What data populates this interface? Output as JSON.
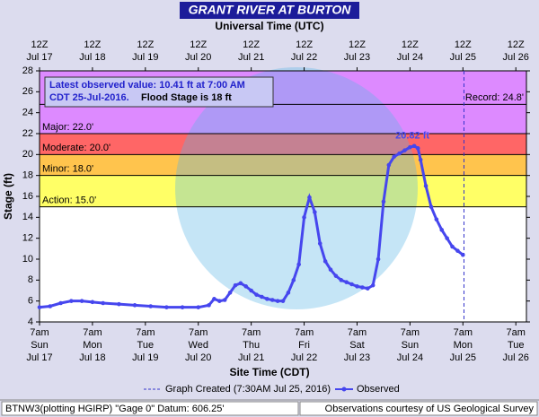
{
  "chart_data": {
    "type": "line",
    "title": "GRANT RIVER AT BURTON",
    "top_axis_label": "Universal Time (UTC)",
    "x_label": "Site Time (CDT)",
    "y_label": "Stage (ft)",
    "info_lines": [
      "Latest observed value: 10.41 ft at 7:00 AM",
      "CDT 25-Jul-2016."
    ],
    "info_flood": "Flood Stage is 18 ft",
    "peak_label": "20.82 ft",
    "xlim": [
      0,
      9.2
    ],
    "ylim": [
      4,
      28
    ],
    "yticks": [
      4,
      6,
      8,
      10,
      12,
      14,
      16,
      18,
      20,
      22,
      24,
      26,
      28
    ],
    "xticks": [
      {
        "value": 0,
        "label": [
          "7am",
          "Sun",
          "Jul 17"
        ]
      },
      {
        "value": 1,
        "label": [
          "7am",
          "Mon",
          "Jul 18"
        ]
      },
      {
        "value": 2,
        "label": [
          "7am",
          "Tue",
          "Jul 19"
        ]
      },
      {
        "value": 3,
        "label": [
          "7am",
          "Wed",
          "Jul 20"
        ]
      },
      {
        "value": 4,
        "label": [
          "7am",
          "Thu",
          "Jul 21"
        ]
      },
      {
        "value": 5,
        "label": [
          "7am",
          "Fri",
          "Jul 22"
        ]
      },
      {
        "value": 6,
        "label": [
          "7am",
          "Sat",
          "Jul 23"
        ]
      },
      {
        "value": 7,
        "label": [
          "7am",
          "Sun",
          "Jul 24"
        ]
      },
      {
        "value": 8,
        "label": [
          "7am",
          "Mon",
          "Jul 25"
        ]
      },
      {
        "value": 9,
        "label": [
          "7am",
          "Tue",
          "Jul 26"
        ]
      }
    ],
    "top_xticks": [
      {
        "value": 0,
        "label": [
          "12Z",
          "Jul 17"
        ]
      },
      {
        "value": 1,
        "label": [
          "12Z",
          "Jul 18"
        ]
      },
      {
        "value": 2,
        "label": [
          "12Z",
          "Jul 19"
        ]
      },
      {
        "value": 3,
        "label": [
          "12Z",
          "Jul 20"
        ]
      },
      {
        "value": 4,
        "label": [
          "12Z",
          "Jul 21"
        ]
      },
      {
        "value": 5,
        "label": [
          "12Z",
          "Jul 22"
        ]
      },
      {
        "value": 6,
        "label": [
          "12Z",
          "Jul 23"
        ]
      },
      {
        "value": 7,
        "label": [
          "12Z",
          "Jul 24"
        ]
      },
      {
        "value": 8,
        "label": [
          "12Z",
          "Jul 25"
        ]
      },
      {
        "value": 9,
        "label": [
          "12Z",
          "Jul 26"
        ]
      }
    ],
    "flood_categories": [
      {
        "name": "Action: 15.0'",
        "value": 15,
        "color": "#ffff66"
      },
      {
        "name": "Minor: 18.0'",
        "value": 18,
        "color": "#ffc44d"
      },
      {
        "name": "Moderate: 20.0'",
        "value": 20,
        "color": "#ff6666"
      },
      {
        "name": "Major: 22.0'",
        "value": 22,
        "color": "#dd8aff"
      }
    ],
    "record": {
      "name": "Record: 24.8'",
      "value": 24.8
    },
    "created": {
      "name": "Graph Created (7:30AM Jul 25, 2016)",
      "x": 8.02
    },
    "series": [
      {
        "name": "Observed",
        "color": "#4646ee",
        "x": [
          0,
          0.2,
          0.4,
          0.6,
          0.8,
          1.0,
          1.2,
          1.5,
          1.8,
          2.1,
          2.4,
          2.7,
          3.0,
          3.2,
          3.3,
          3.4,
          3.5,
          3.6,
          3.7,
          3.8,
          3.9,
          4.0,
          4.1,
          4.2,
          4.3,
          4.4,
          4.5,
          4.6,
          4.7,
          4.8,
          4.9,
          5.0,
          5.1,
          5.2,
          5.3,
          5.4,
          5.5,
          5.6,
          5.7,
          5.8,
          5.9,
          6.0,
          6.1,
          6.2,
          6.3,
          6.4,
          6.5,
          6.6,
          6.7,
          6.8,
          6.9,
          7.0,
          7.08,
          7.15,
          7.2,
          7.3,
          7.4,
          7.5,
          7.6,
          7.7,
          7.8,
          7.9,
          8.0
        ],
        "values": [
          5.4,
          5.5,
          5.8,
          6.0,
          6.0,
          5.9,
          5.8,
          5.7,
          5.6,
          5.5,
          5.4,
          5.4,
          5.4,
          5.6,
          6.2,
          6.0,
          6.1,
          6.8,
          7.5,
          7.7,
          7.4,
          7.0,
          6.6,
          6.4,
          6.2,
          6.1,
          6.0,
          6.0,
          6.8,
          8.0,
          9.5,
          14.0,
          15.9,
          14.5,
          11.5,
          9.8,
          9.0,
          8.4,
          8.0,
          7.8,
          7.6,
          7.4,
          7.3,
          7.2,
          7.5,
          10.0,
          15.5,
          19.0,
          19.8,
          20.1,
          20.4,
          20.7,
          20.82,
          20.6,
          19.5,
          17.0,
          15.0,
          13.8,
          12.8,
          12.0,
          11.2,
          10.8,
          10.41
        ]
      }
    ],
    "footer_left": "BTNW3(plotting HGIRP) \"Gage 0\" Datum: 606.25'",
    "footer_right": "Observations courtesy of US Geological Survey"
  }
}
